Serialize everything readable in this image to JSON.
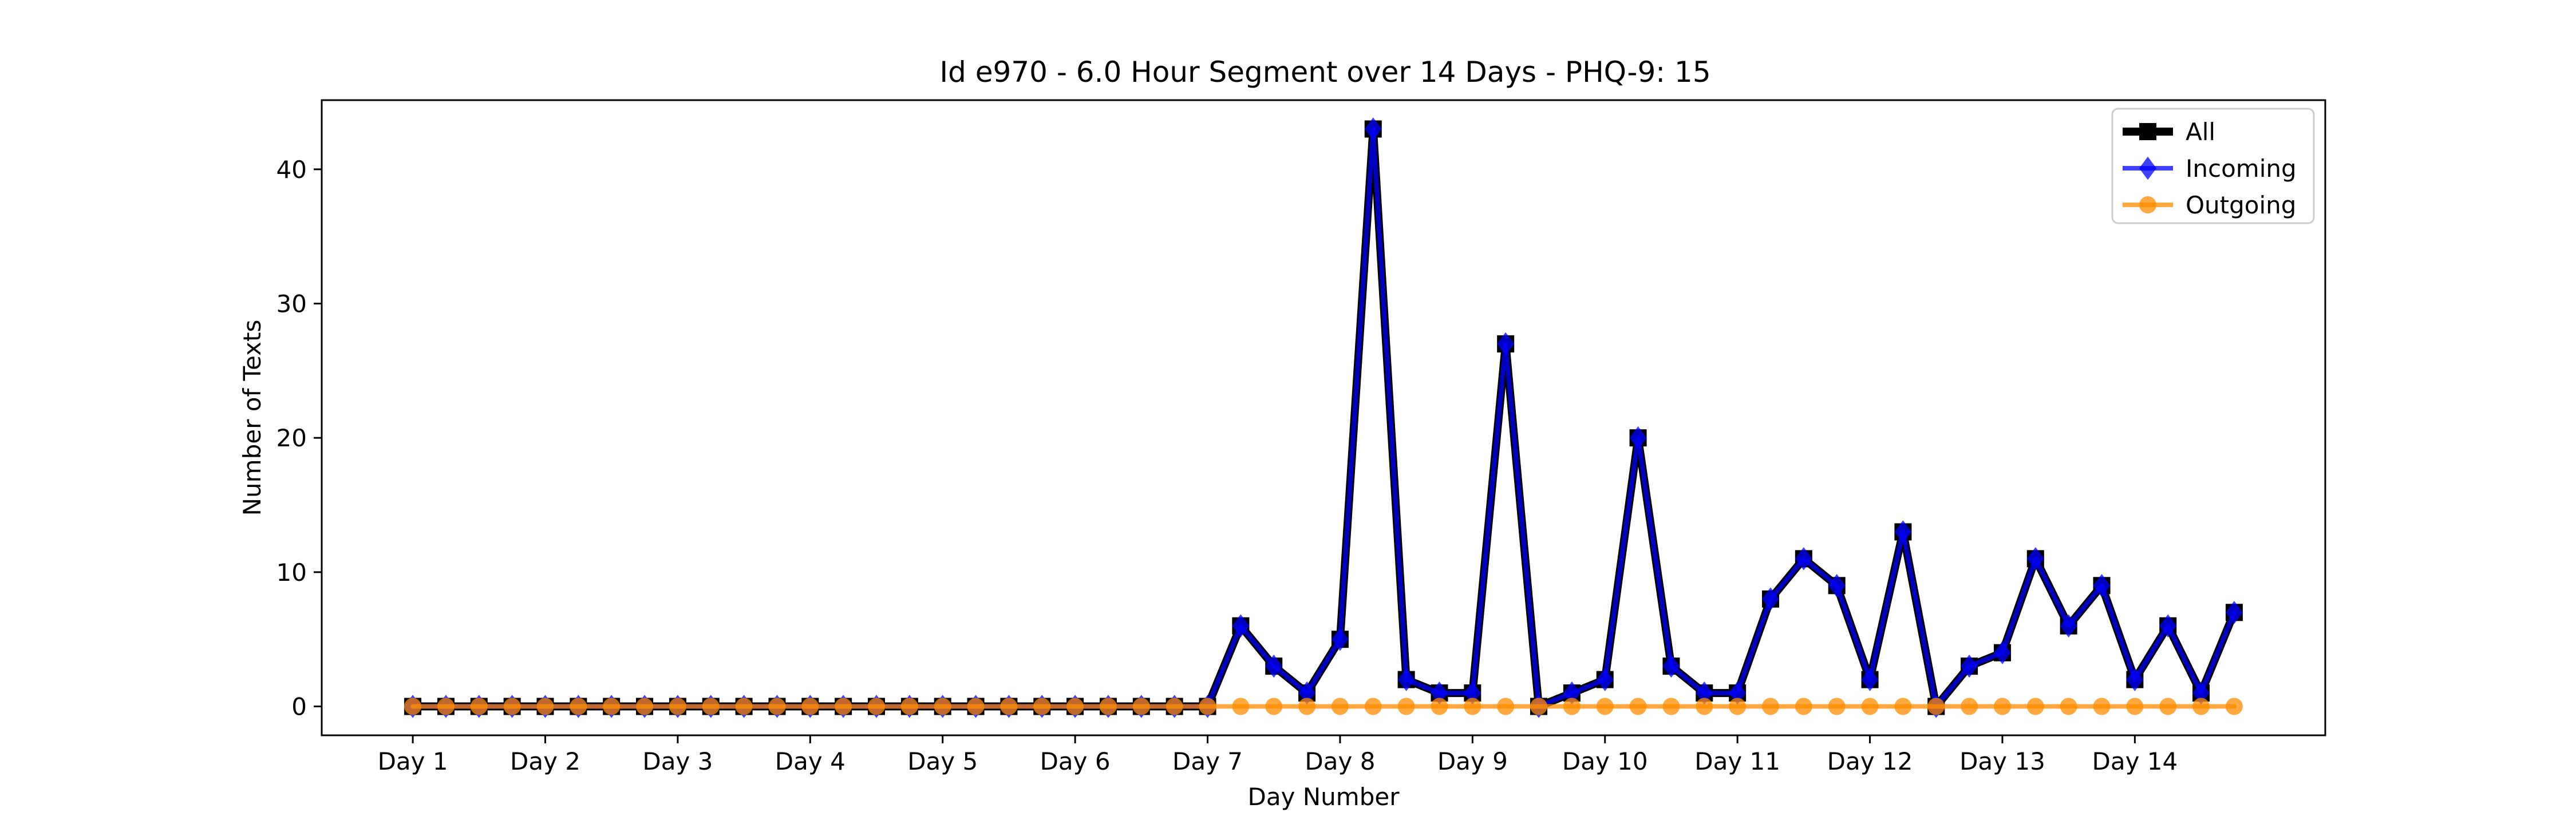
{
  "chart_data": {
    "type": "line",
    "title": "Id e970 - 6.0 Hour Segment over 14 Days - PHQ-9: 15",
    "xlabel": "Day Number",
    "ylabel": "Number of Texts",
    "ylim": [
      -2.15,
      45.15
    ],
    "yticks": [
      0,
      10,
      20,
      30,
      40
    ],
    "xlim": [
      -2.75,
      57.75
    ],
    "xticks": [
      {
        "value": 0,
        "label": "Day 1"
      },
      {
        "value": 4,
        "label": "Day 2"
      },
      {
        "value": 8,
        "label": "Day 3"
      },
      {
        "value": 12,
        "label": "Day 4"
      },
      {
        "value": 16,
        "label": "Day 5"
      },
      {
        "value": 20,
        "label": "Day 6"
      },
      {
        "value": 24,
        "label": "Day 7"
      },
      {
        "value": 28,
        "label": "Day 8"
      },
      {
        "value": 32,
        "label": "Day 9"
      },
      {
        "value": 36,
        "label": "Day 10"
      },
      {
        "value": 40,
        "label": "Day 11"
      },
      {
        "value": 44,
        "label": "Day 12"
      },
      {
        "value": 48,
        "label": "Day 13"
      },
      {
        "value": 52,
        "label": "Day 14"
      }
    ],
    "grid": false,
    "legend_position": "top-right",
    "series": [
      {
        "name": "All",
        "color": "#000000",
        "marker": "square",
        "values": [
          0,
          0,
          0,
          0,
          0,
          0,
          0,
          0,
          0,
          0,
          0,
          0,
          0,
          0,
          0,
          0,
          0,
          0,
          0,
          0,
          0,
          0,
          0,
          0,
          0,
          6,
          3,
          1,
          5,
          43,
          2,
          1,
          1,
          27,
          0,
          1,
          2,
          20,
          3,
          1,
          1,
          8,
          11,
          9,
          2,
          13,
          0,
          3,
          4,
          11,
          6,
          9,
          2,
          6,
          1,
          7
        ]
      },
      {
        "name": "Incoming",
        "color": "#0000ff",
        "marker": "diamond",
        "values": [
          0,
          0,
          0,
          0,
          0,
          0,
          0,
          0,
          0,
          0,
          0,
          0,
          0,
          0,
          0,
          0,
          0,
          0,
          0,
          0,
          0,
          0,
          0,
          0,
          0,
          6,
          3,
          1,
          5,
          43,
          2,
          1,
          1,
          27,
          0,
          1,
          2,
          20,
          3,
          1,
          1,
          8,
          11,
          9,
          2,
          13,
          0,
          3,
          4,
          11,
          6,
          9,
          2,
          6,
          1,
          7
        ]
      },
      {
        "name": "Outgoing",
        "color": "#ff8c00",
        "marker": "circle",
        "values": [
          0,
          0,
          0,
          0,
          0,
          0,
          0,
          0,
          0,
          0,
          0,
          0,
          0,
          0,
          0,
          0,
          0,
          0,
          0,
          0,
          0,
          0,
          0,
          0,
          0,
          0,
          0,
          0,
          0,
          0,
          0,
          0,
          0,
          0,
          0,
          0,
          0,
          0,
          0,
          0,
          0,
          0,
          0,
          0,
          0,
          0,
          0,
          0,
          0,
          0,
          0,
          0,
          0,
          0,
          0,
          0
        ]
      }
    ]
  }
}
